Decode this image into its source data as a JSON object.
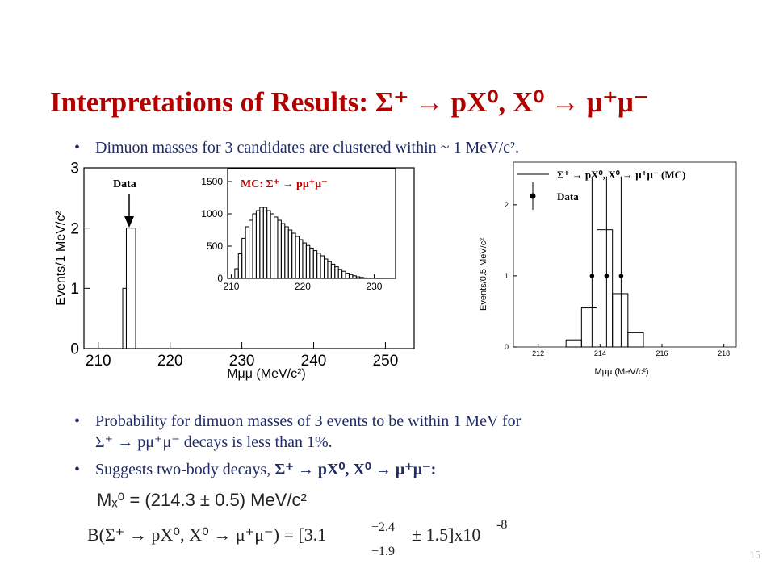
{
  "slide": {
    "title": "Interpretations of Results: Σ⁺ → pX⁰, X⁰ → μ⁺μ⁻",
    "bullet_1": "Dimuon masses for 3 candidates are clustered within ~ 1 MeV/c².",
    "bullet_2": [
      "Probability for dimuon masses of 3 events to be within 1 MeV for",
      "Σ⁺ → pμ⁺μ⁻  decays  is less than 1%."
    ],
    "bullet_3": [
      "Suggests two-body decays,  ",
      "Σ⁺ → pX⁰, X⁰ → μ⁺μ⁻:"
    ],
    "formula_mass": "Mₓ⁰ = (214.3 ± 0.5) MeV/c²",
    "formula_br": {
      "main": "B(Σ⁺ → pX⁰, X⁰ → μ⁺μ⁻) = [3.1",
      "upper": "+2.4",
      "lower": "−1.9",
      "rest": "± 1.5]x10",
      "exponent": "-8"
    },
    "page_number": "15"
  },
  "chart_data": [
    {
      "type": "histogram",
      "xlabel": "Mμμ (MeV/c²)",
      "ylabel": "Events/1 MeV/c²",
      "xlim": [
        208,
        254
      ],
      "xticks": [
        210,
        220,
        230,
        240,
        250
      ],
      "ylim": [
        0,
        3
      ],
      "yticks": [
        0,
        1,
        2,
        3
      ],
      "series": [
        {
          "name": "Data",
          "bins": [
            213.4,
            213.9,
            215.2
          ],
          "counts": [
            1,
            2
          ],
          "color": "#000000"
        }
      ],
      "annotation": "Data"
    },
    {
      "type": "histogram",
      "annotation": "MC: Σ⁺ → pμ⁺μ⁻",
      "xlim": [
        209.5,
        233
      ],
      "xticks": [
        210,
        220,
        230
      ],
      "ylim": [
        0,
        1700
      ],
      "yticks": [
        0,
        500,
        1000,
        1500
      ],
      "series": [
        {
          "bins": [
            210.5,
            211,
            211.5,
            212,
            212.5,
            213,
            213.5,
            214,
            214.5,
            215,
            215.5,
            216,
            216.5,
            217,
            217.5,
            218,
            218.5,
            219,
            219.5,
            220,
            220.5,
            221,
            221.5,
            222,
            222.5,
            223,
            223.5,
            224,
            224.5,
            225,
            225.5,
            226,
            226.5,
            227,
            227.5,
            228,
            228.5,
            229,
            229.5
          ],
          "counts": [
            150,
            380,
            620,
            800,
            900,
            1000,
            1050,
            1100,
            1100,
            1050,
            1000,
            950,
            900,
            850,
            800,
            750,
            700,
            650,
            600,
            550,
            510,
            470,
            430,
            390,
            350,
            300,
            260,
            220,
            180,
            140,
            110,
            80,
            60,
            40,
            25,
            15,
            8,
            3
          ],
          "color": "#000000"
        }
      ]
    },
    {
      "type": "histogram",
      "xlabel": "Mμμ (MeV/c²)",
      "ylabel": "Events/0.5 MeV/c²",
      "xlim": [
        211.2,
        218.4
      ],
      "xticks": [
        212,
        214,
        216,
        218
      ],
      "ylim": [
        0,
        2.6
      ],
      "yticks": [
        0,
        1,
        2
      ],
      "series": [
        {
          "name": "Σ⁺ → pX⁰, X⁰ → μ⁺μ⁻ (MC)",
          "bins": [
            212.9,
            213.4,
            213.9,
            214.4,
            214.9,
            215.4
          ],
          "counts": [
            0.1,
            0.55,
            1.65,
            0.75,
            0.2
          ],
          "color": "#000000"
        },
        {
          "name": "Data",
          "x": [
            213.74,
            214.21,
            214.68
          ],
          "y": [
            1,
            1,
            1
          ],
          "error_low": [
            1,
            1,
            1
          ],
          "error_high": [
            1.4,
            1.4,
            1.4
          ],
          "color": "#000000"
        }
      ]
    }
  ]
}
